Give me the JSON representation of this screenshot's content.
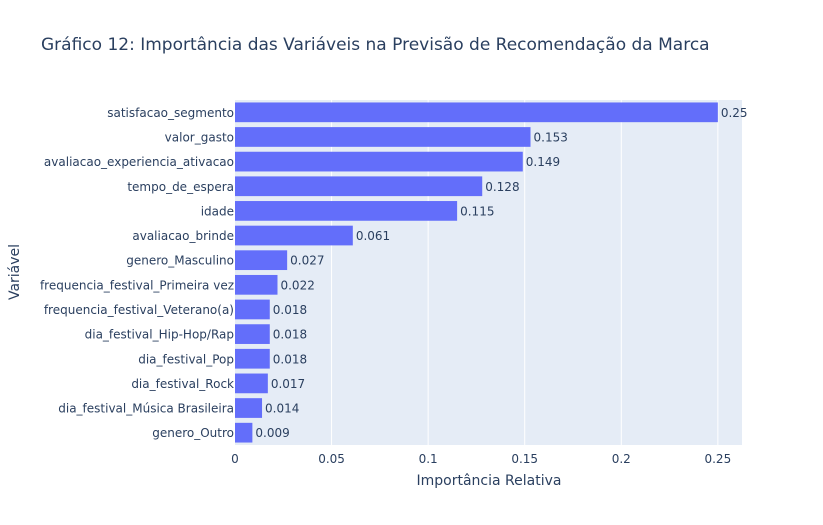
{
  "chart_data": {
    "type": "bar",
    "orientation": "horizontal",
    "title": "Gráfico 12: Importância das Variáveis na Previsão de Recomendação da Marca",
    "xlabel": "Importância Relativa",
    "ylabel": "Variável",
    "xlim": [
      0,
      0.2625
    ],
    "xticks": [
      0,
      0.05,
      0.1,
      0.15,
      0.2,
      0.25
    ],
    "xtick_labels": [
      "0",
      "0.05",
      "0.1",
      "0.15",
      "0.2",
      "0.25"
    ],
    "grid": true,
    "legend": false,
    "colors": {
      "bar": "#636efa",
      "plot_bg": "#e5ecf6",
      "grid": "#ffffff",
      "text": "#2a3f5f"
    },
    "categories": [
      "satisfacao_segmento",
      "valor_gasto",
      "avaliacao_experiencia_ativacao",
      "tempo_de_espera",
      "idade",
      "avaliacao_brinde",
      "genero_Masculino",
      "frequencia_festival_Primeira vez",
      "frequencia_festival_Veterano(a)",
      "dia_festival_Hip-Hop/Rap",
      "dia_festival_Pop",
      "dia_festival_Rock",
      "dia_festival_Música Brasileira",
      "genero_Outro"
    ],
    "values": [
      0.25,
      0.153,
      0.149,
      0.128,
      0.115,
      0.061,
      0.027,
      0.022,
      0.018,
      0.018,
      0.018,
      0.017,
      0.014,
      0.009
    ],
    "labels": [
      "0.25",
      "0.153",
      "0.149",
      "0.128",
      "0.115",
      "0.061",
      "0.027",
      "0.022",
      "0.018",
      "0.018",
      "0.018",
      "0.017",
      "0.014",
      "0.009"
    ]
  }
}
